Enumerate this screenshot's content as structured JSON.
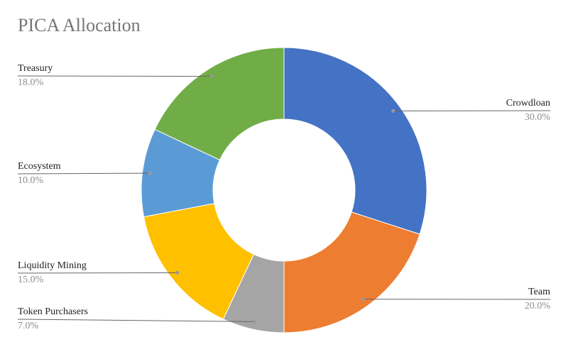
{
  "chart_data": {
    "type": "donut",
    "title": "PICA Allocation",
    "categories": [
      "Crowdloan",
      "Team",
      "Token Purchasers",
      "Liquidity Mining",
      "Ecosystem",
      "Treasury"
    ],
    "values": [
      30,
      20,
      7,
      15,
      10,
      18
    ],
    "value_labels": [
      "30.0%",
      "20.0%",
      "7.0%",
      "15.0%",
      "10.0%",
      "18.0%"
    ],
    "colors": [
      "#4472c4",
      "#ed7d31",
      "#a5a5a5",
      "#ffc000",
      "#5b9bd5",
      "#70ad47"
    ]
  }
}
